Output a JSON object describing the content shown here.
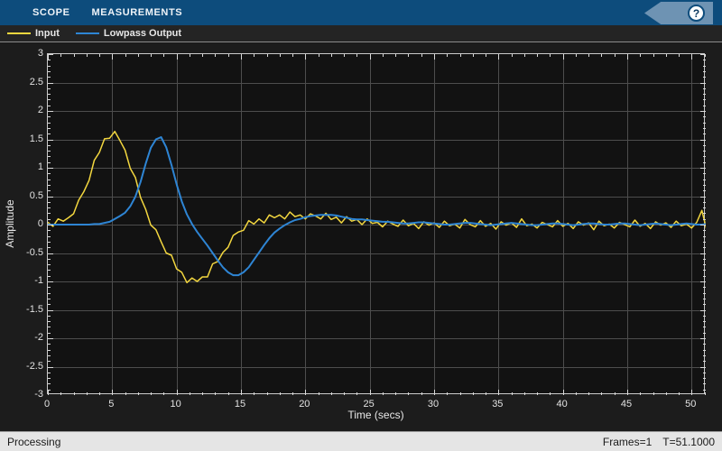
{
  "toolstrip": {
    "tabs": [
      {
        "label": "SCOPE",
        "active": true
      },
      {
        "label": "MEASUREMENTS",
        "active": false
      }
    ],
    "help_label": "?"
  },
  "legend": {
    "items": [
      {
        "label": "Input",
        "color": "#f3d73f"
      },
      {
        "label": "Lowpass Output",
        "color": "#2e85d4"
      }
    ]
  },
  "statusbar": {
    "left": "Processing",
    "frames": "Frames=1",
    "time": "T=51.1000"
  },
  "chart_data": {
    "type": "line",
    "title": "",
    "xlabel": "Time (secs)",
    "ylabel": "Amplitude",
    "xlim": [
      0,
      51.1
    ],
    "ylim": [
      -3,
      3
    ],
    "xticks": [
      "0",
      "5",
      "10",
      "15",
      "20",
      "25",
      "30",
      "35",
      "40",
      "45",
      "50"
    ],
    "yticks": [
      "3",
      "2.5",
      "2",
      "1.5",
      "1",
      "0.5",
      "0",
      "-0.5",
      "-1",
      "-1.5",
      "-2",
      "-2.5",
      "-3"
    ],
    "x_minor_step": 1,
    "y_minor_step": 0.1,
    "grid": true,
    "legend_position": "top-left-strip",
    "background": "#121212",
    "grid_color": "#4d4d4d",
    "axis_color": "#c9c9c9",
    "tick_color": "#d9d9d9",
    "series": [
      {
        "name": "Input",
        "color": "#f3d73f",
        "width": 1.5,
        "x_start": 0,
        "x_step": 0.4,
        "values": [
          0.04,
          -0.03,
          0.1,
          0.06,
          0.12,
          0.19,
          0.43,
          0.58,
          0.78,
          1.13,
          1.27,
          1.51,
          1.52,
          1.64,
          1.48,
          1.31,
          0.99,
          0.83,
          0.48,
          0.27,
          -0.01,
          -0.09,
          -0.3,
          -0.5,
          -0.54,
          -0.78,
          -0.84,
          -1.02,
          -0.94,
          -1.0,
          -0.92,
          -0.92,
          -0.69,
          -0.65,
          -0.49,
          -0.4,
          -0.19,
          -0.13,
          -0.1,
          0.07,
          0.01,
          0.1,
          0.03,
          0.17,
          0.12,
          0.17,
          0.1,
          0.22,
          0.14,
          0.17,
          0.1,
          0.19,
          0.15,
          0.1,
          0.2,
          0.09,
          0.13,
          0.03,
          0.14,
          0.06,
          0.09,
          0.0,
          0.1,
          0.02,
          0.04,
          -0.04,
          0.06,
          0.01,
          -0.03,
          0.08,
          -0.02,
          0.02,
          -0.07,
          0.05,
          -0.01,
          0.03,
          -0.05,
          0.06,
          -0.02,
          0.01,
          -0.06,
          0.09,
          0.0,
          -0.04,
          0.07,
          -0.03,
          0.02,
          -0.08,
          0.05,
          -0.01,
          0.03,
          -0.05,
          0.1,
          -0.02,
          0.01,
          -0.06,
          0.04,
          0.0,
          -0.04,
          0.07,
          -0.03,
          0.02,
          -0.07,
          0.05,
          -0.01,
          0.03,
          -0.09,
          0.06,
          -0.02,
          0.01,
          -0.06,
          0.04,
          0.0,
          -0.04,
          0.08,
          -0.03,
          0.02,
          -0.07,
          0.05,
          -0.01,
          0.03,
          -0.05,
          0.06,
          -0.02,
          0.01,
          -0.06,
          0.04,
          0.25,
          -0.12
        ]
      },
      {
        "name": "Lowpass Output",
        "color": "#2e85d4",
        "width": 2,
        "x_start": 0,
        "x_step": 0.4,
        "values": [
          0.0,
          0.0,
          0.0,
          0.0,
          0.0,
          0.0,
          0.0,
          0.0,
          0.0,
          0.01,
          0.01,
          0.03,
          0.05,
          0.1,
          0.15,
          0.21,
          0.32,
          0.49,
          0.75,
          1.07,
          1.35,
          1.5,
          1.54,
          1.36,
          1.05,
          0.71,
          0.41,
          0.18,
          0.01,
          -0.13,
          -0.25,
          -0.37,
          -0.5,
          -0.63,
          -0.75,
          -0.84,
          -0.89,
          -0.89,
          -0.84,
          -0.75,
          -0.62,
          -0.49,
          -0.36,
          -0.24,
          -0.14,
          -0.07,
          -0.01,
          0.04,
          0.08,
          0.1,
          0.13,
          0.15,
          0.16,
          0.17,
          0.17,
          0.17,
          0.16,
          0.14,
          0.12,
          0.1,
          0.09,
          0.09,
          0.08,
          0.07,
          0.06,
          0.05,
          0.05,
          0.04,
          0.03,
          0.02,
          0.02,
          0.03,
          0.04,
          0.04,
          0.03,
          0.02,
          0.01,
          0.0,
          0.0,
          0.01,
          0.02,
          0.03,
          0.03,
          0.02,
          0.01,
          0.0,
          -0.01,
          0.0,
          0.01,
          0.02,
          0.03,
          0.02,
          0.01,
          0.0,
          -0.01,
          -0.01,
          0.0,
          0.01,
          0.02,
          0.02,
          0.01,
          0.0,
          -0.01,
          0.0,
          0.01,
          0.02,
          0.02,
          0.01,
          0.0,
          0.0,
          0.01,
          0.02,
          0.02,
          0.01,
          0.0,
          -0.01,
          0.0,
          0.01,
          0.02,
          0.01,
          0.0,
          -0.01,
          0.0,
          0.01,
          0.02,
          0.01,
          0.0,
          0.0,
          0.01
        ]
      }
    ]
  }
}
